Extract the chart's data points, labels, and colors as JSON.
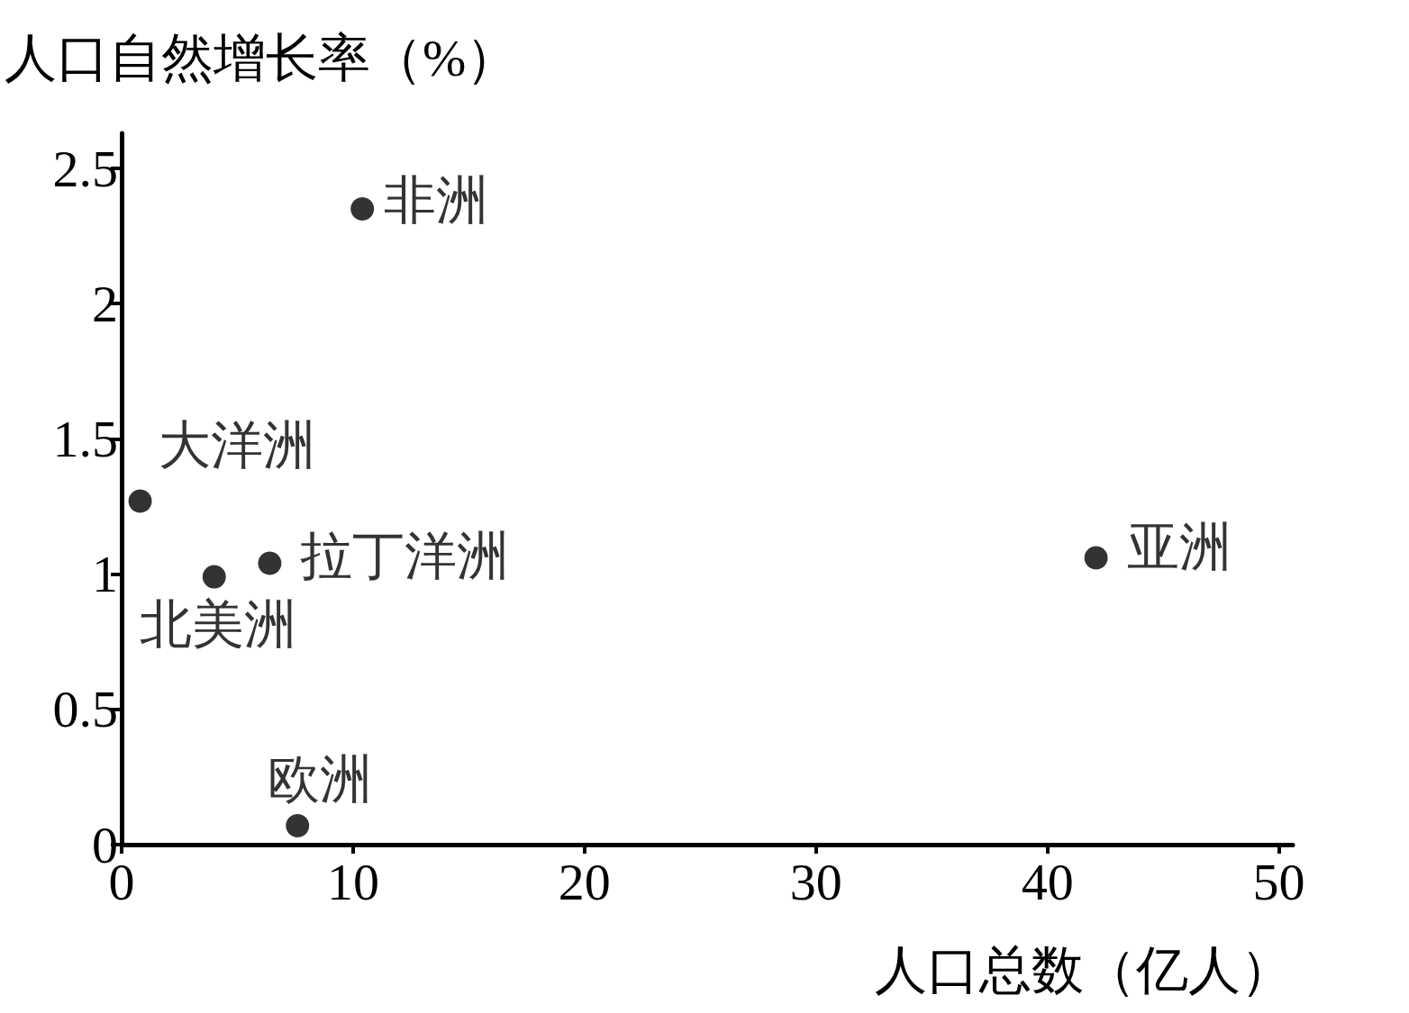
{
  "chart_data": {
    "type": "scatter",
    "xlabel": "人口总数（亿人）",
    "ylabel": "人口自然增长率（%）",
    "xlim": [
      0,
      50.6
    ],
    "xticks": [
      0,
      10,
      20,
      30,
      40,
      50
    ],
    "ylim": [
      0,
      2.63
    ],
    "yticks": [
      0,
      0.5,
      1,
      1.5,
      2,
      2.5
    ],
    "grid": false,
    "legend": false,
    "marker": "circle",
    "series": [
      {
        "name": "非洲",
        "color": "#000000",
        "x": [
          10.4
        ],
        "values": [
          2.35
        ]
      },
      {
        "name": "大洋洲",
        "color": "#000000",
        "x": [
          0.8
        ],
        "values": [
          1.27
        ]
      },
      {
        "name": "拉丁洋洲",
        "color": "#000000",
        "x": [
          6.4
        ],
        "values": [
          1.04
        ]
      },
      {
        "name": "北美洲",
        "color": "#000000",
        "x": [
          4.0
        ],
        "values": [
          0.99
        ]
      },
      {
        "name": "亚洲",
        "color": "#000000",
        "x": [
          42.1
        ],
        "values": [
          1.06
        ]
      },
      {
        "name": "欧洲",
        "color": "#000000",
        "x": [
          7.6
        ],
        "values": [
          0.07
        ]
      }
    ]
  }
}
